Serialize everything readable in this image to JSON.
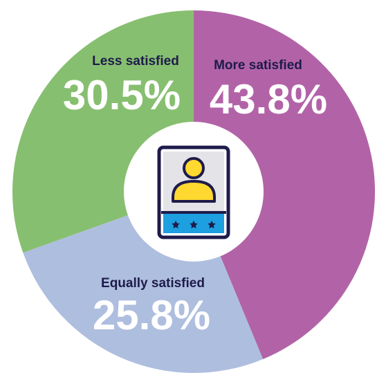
{
  "chart_data": {
    "type": "pie",
    "slices": [
      {
        "label": "More satisfied",
        "value": 43.8,
        "display": "43.8%",
        "color": "#b263a7"
      },
      {
        "label": "Equally satisfied",
        "value": 25.8,
        "display": "25.8%",
        "color": "#aebedf"
      },
      {
        "label": "Less satisfied",
        "value": 30.5,
        "display": "30.5%",
        "color": "#87bf70"
      }
    ],
    "start_angle": "12 o'clock",
    "direction": "clockwise",
    "center_icon": "user-rating-card-icon",
    "label_color": "#1e1b4b",
    "value_color": "#ffffff"
  }
}
